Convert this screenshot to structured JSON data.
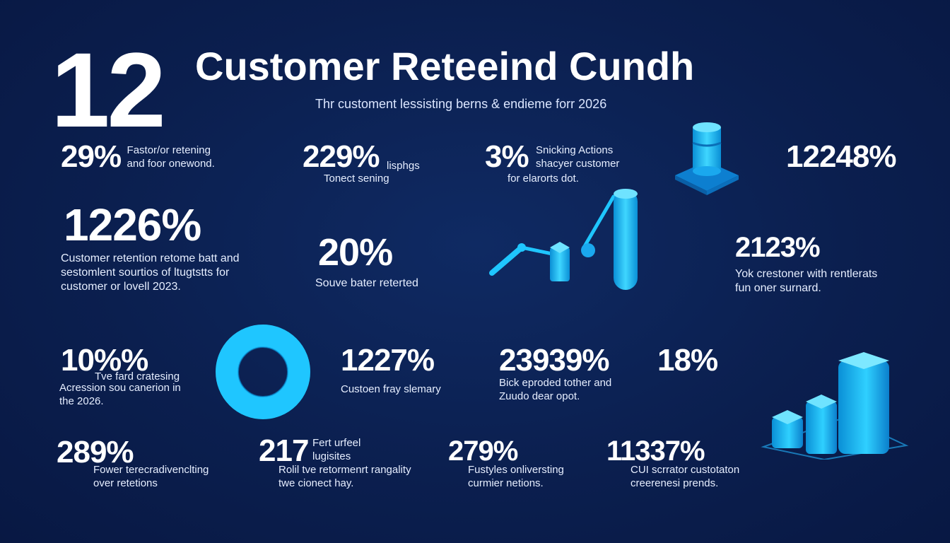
{
  "header": {
    "big_number": "12",
    "title": "Customer Reteeind Cundh",
    "subtitle": "Thr customent lessisting berns & endieme forr 2026"
  },
  "stats": [
    {
      "id": "s1",
      "value": "29%",
      "lines": [
        "Fastor/or retening",
        "and foor onewond."
      ]
    },
    {
      "id": "s2",
      "value": "229%",
      "lines": [
        "lisphgs",
        "Tonect sening"
      ]
    },
    {
      "id": "s3",
      "value": "3%",
      "lines": [
        "Snicking Actions",
        "shacyer customer",
        "for elarorts dot."
      ]
    },
    {
      "id": "s4",
      "value": "12248%",
      "lines": []
    },
    {
      "id": "s5",
      "value": "1226%",
      "lines": [
        "Customer retention retome batt and",
        "sestomlent sourtios of ltugtstts for",
        "customer or lovell 2023."
      ]
    },
    {
      "id": "s6",
      "value": "20%",
      "lines": [
        "Souve bater reterted"
      ]
    },
    {
      "id": "s7",
      "value": "2123%",
      "lines": [
        "Yok crestoner with rentlerats",
        "fun oner surnard."
      ]
    },
    {
      "id": "s8",
      "value": "10%%",
      "lines": [
        "Tve fard cratesing",
        "Acression sou canerion in",
        "the 2026."
      ]
    },
    {
      "id": "s9",
      "value": "1227%",
      "lines": [
        "Custoen fray slemary"
      ]
    },
    {
      "id": "s10",
      "value": "23939%",
      "lines": [
        "Bick eproded tother and",
        "Zuudo dear opot."
      ]
    },
    {
      "id": "s11",
      "value": "18%",
      "lines": []
    },
    {
      "id": "s12",
      "value": "289%",
      "lines": [
        "Fower terecradivenclting",
        "over retetions"
      ]
    },
    {
      "id": "s13",
      "value": "217",
      "lines": [
        "Fert urfeel",
        "lugisites",
        "Rolil tve retormenrt rangality",
        "twe cionect hay."
      ]
    },
    {
      "id": "s14",
      "value": "279%",
      "lines": [
        "Fustyles onliversting",
        "curmier netions."
      ]
    },
    {
      "id": "s15",
      "value": "11337%",
      "lines": [
        "CUI scrrator custotaton",
        "creerenesi prends."
      ]
    }
  ],
  "colors": {
    "background": "#0b1f4f",
    "accent": "#1fc6ff",
    "accent_dark": "#0a8fd6",
    "text": "#ffffff"
  },
  "graphics": [
    "cylinder-pedestal-icon",
    "line-chart-3d-graphic",
    "ring-donut-graphic",
    "bar-chart-3d-graphic"
  ]
}
